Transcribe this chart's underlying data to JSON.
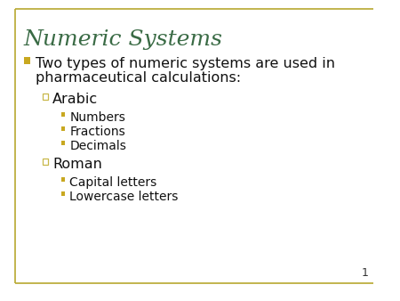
{
  "title": "Numeric Systems",
  "title_color": "#3a6b45",
  "title_fontsize": 18,
  "background_color": "#ffffff",
  "border_color": "#b8a830",
  "slide_number": "1",
  "bullet1_line1": "Two types of numeric systems are used in",
  "bullet1_line2": "pharmaceutical calculations:",
  "bullet1_color": "#111111",
  "bullet1_marker_color": "#c8a820",
  "bullet1_fontsize": 11.5,
  "sub1_label": "Arabic",
  "sub2_label": "Roman",
  "sub_color": "#111111",
  "sub_fontsize": 11.5,
  "sub_marker_color": "#c8b84a",
  "arabic_items": [
    "Numbers",
    "Fractions",
    "Decimals"
  ],
  "roman_items": [
    "Capital letters",
    "Lowercase letters"
  ],
  "item_fontsize": 10,
  "item_color": "#111111",
  "item_marker_color": "#c8a820"
}
